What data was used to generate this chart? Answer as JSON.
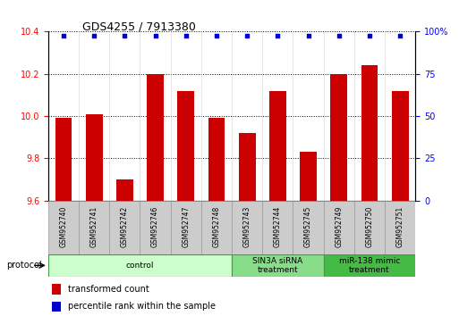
{
  "title": "GDS4255 / 7913380",
  "samples": [
    "GSM952740",
    "GSM952741",
    "GSM952742",
    "GSM952746",
    "GSM952747",
    "GSM952748",
    "GSM952743",
    "GSM952744",
    "GSM952745",
    "GSM952749",
    "GSM952750",
    "GSM952751"
  ],
  "bar_values": [
    9.99,
    10.01,
    9.7,
    10.2,
    10.12,
    9.99,
    9.92,
    10.12,
    9.83,
    10.2,
    10.24,
    10.12
  ],
  "percentile_values": [
    100,
    100,
    100,
    100,
    100,
    100,
    100,
    100,
    100,
    100,
    100,
    100
  ],
  "bar_color": "#cc0000",
  "percentile_color": "#0000cc",
  "ylim_left": [
    9.6,
    10.4
  ],
  "ylim_right": [
    0,
    100
  ],
  "yticks_left": [
    9.6,
    9.8,
    10.0,
    10.2,
    10.4
  ],
  "yticks_right": [
    0,
    25,
    50,
    75,
    100
  ],
  "groups": [
    {
      "label": "control",
      "start": 0,
      "end": 6,
      "color": "#ccffcc",
      "edge_color": "#449944"
    },
    {
      "label": "SIN3A siRNA\ntreatment",
      "start": 6,
      "end": 9,
      "color": "#88dd88",
      "edge_color": "#449944"
    },
    {
      "label": "miR-138 mimic\ntreatment",
      "start": 9,
      "end": 12,
      "color": "#44bb44",
      "edge_color": "#449944"
    }
  ],
  "protocol_label": "protocol",
  "legend_items": [
    {
      "label": "transformed count",
      "color": "#cc0000"
    },
    {
      "label": "percentile rank within the sample",
      "color": "#0000cc"
    }
  ],
  "bar_width": 0.55,
  "background_color": "#ffffff",
  "label_box_color": "#cccccc",
  "label_box_edge": "#999999"
}
